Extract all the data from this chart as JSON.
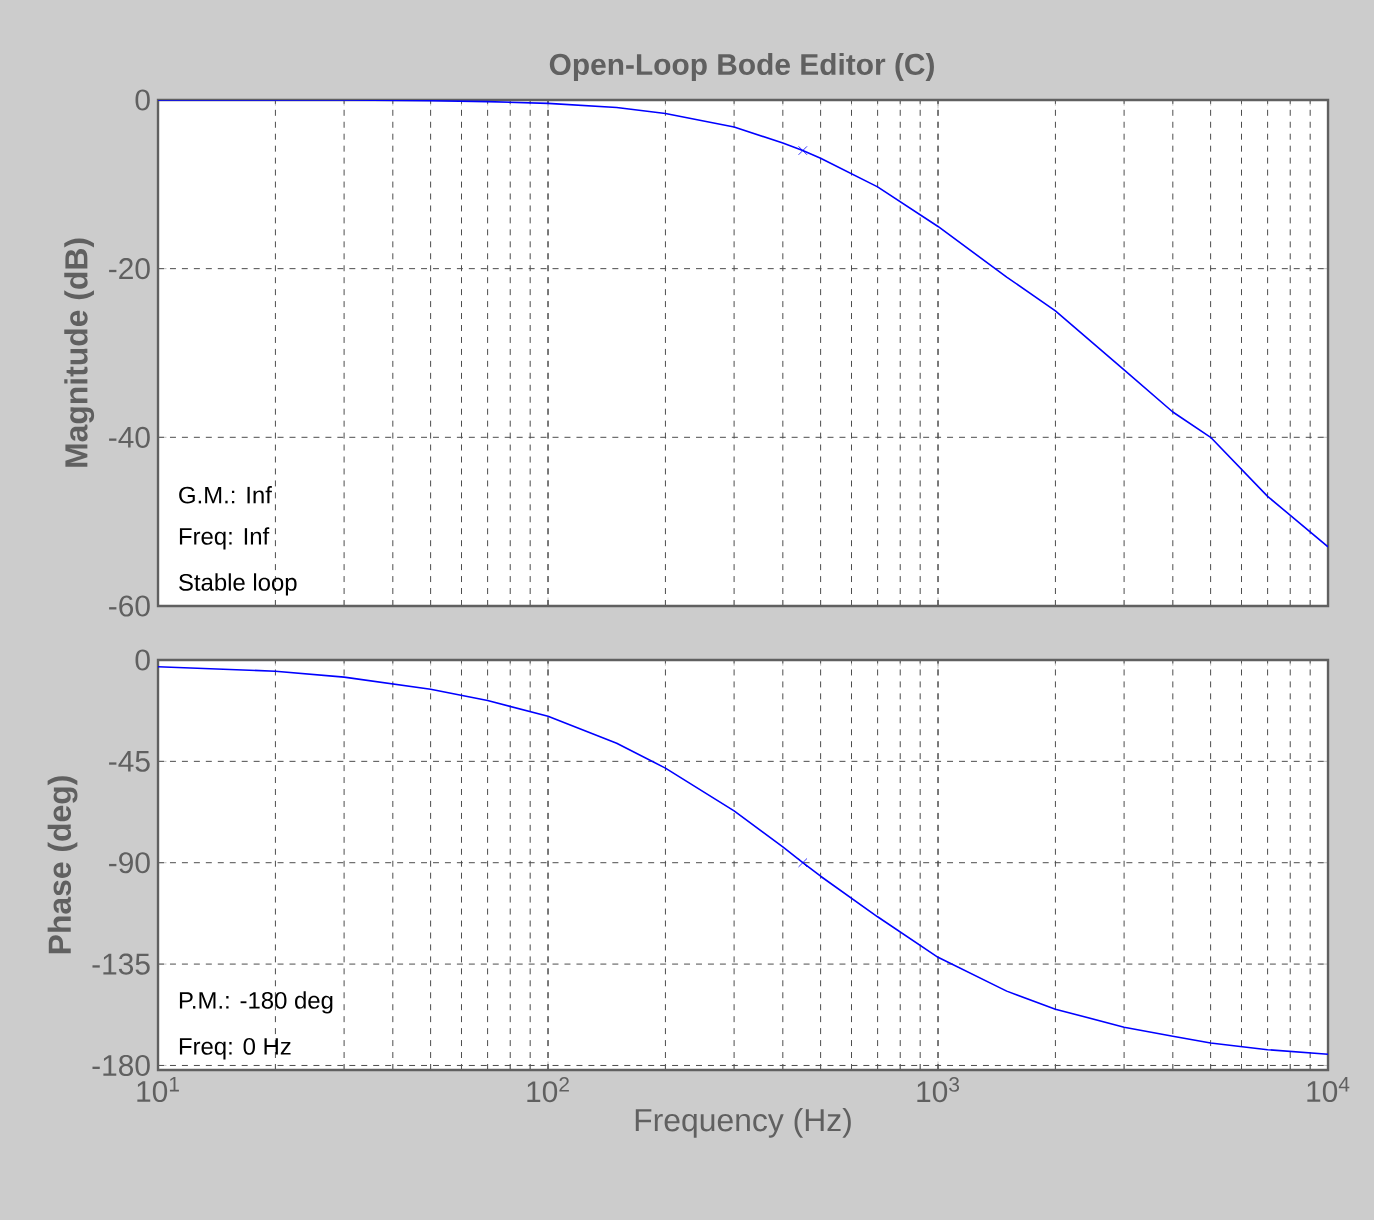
{
  "chart_data": [
    {
      "type": "line",
      "title": "Open-Loop Bode Editor (C)",
      "ylabel": "Magnitude (dB)",
      "x": [
        10,
        20,
        30,
        50,
        70,
        100,
        150,
        200,
        300,
        400,
        450,
        500,
        700,
        1000,
        1500,
        2000,
        3000,
        4000,
        5000,
        7000,
        10000
      ],
      "series": [
        {
          "color": "#0000ff",
          "values": [
            0,
            0,
            0,
            -0.1,
            -0.2,
            -0.4,
            -0.9,
            -1.6,
            -3.2,
            -5.1,
            -6,
            -6.9,
            -10.3,
            -15,
            -21,
            -25,
            -32,
            -37,
            -40,
            -47,
            -53
          ]
        },
        {
          "type": "scatter",
          "marker": "cross",
          "color": "#0000ff",
          "x": [
            450
          ],
          "values": [
            -6
          ]
        }
      ],
      "xlim": [
        10,
        10000
      ],
      "xticks": [
        {
          "value": 10,
          "label": null
        },
        {
          "value": 100,
          "label": null
        },
        {
          "value": 1000,
          "label": null
        },
        {
          "value": 10000,
          "label": null
        }
      ],
      "ylim": [
        -60,
        0
      ],
      "yticks": [
        -60,
        -40,
        -20,
        0
      ],
      "log": "x",
      "grid": true,
      "tick_labels": "y",
      "annotations": [
        "G.M.: Inf",
        "Freq: Inf",
        "Stable loop"
      ]
    },
    {
      "type": "line",
      "xlabel": "Frequency (Hz)",
      "ylabel": "Phase (deg)",
      "x": [
        10,
        20,
        30,
        50,
        70,
        100,
        150,
        200,
        300,
        400,
        450,
        500,
        700,
        1000,
        1500,
        2000,
        3000,
        4000,
        5000,
        7000,
        10000
      ],
      "series": [
        {
          "color": "#0000ff",
          "values": [
            -3,
            -5,
            -7.6,
            -13,
            -18,
            -25,
            -37,
            -48,
            -67,
            -83,
            -90,
            -96,
            -114,
            -132,
            -147,
            -155,
            -163,
            -167,
            -170,
            -173,
            -175
          ]
        },
        {
          "type": "scatter",
          "marker": "cross",
          "color": "#0000ff",
          "x": [
            450
          ],
          "values": [
            -90
          ]
        }
      ],
      "xlim": [
        10,
        10000
      ],
      "xticks": [
        {
          "value": 10,
          "label": "10$^{1}$"
        },
        {
          "value": 100,
          "label": "10$^{2}$"
        },
        {
          "value": 1000,
          "label": "10$^{3}$"
        },
        {
          "value": 10000,
          "label": "10$^{4}$"
        }
      ],
      "ylim": [
        -182,
        0
      ],
      "yticks": [
        -180,
        -135,
        -90,
        -45,
        0
      ],
      "log": "x",
      "grid": true,
      "annotations": [
        "P.M.: -180 deg",
        "Freq: 0 Hz"
      ]
    }
  ]
}
